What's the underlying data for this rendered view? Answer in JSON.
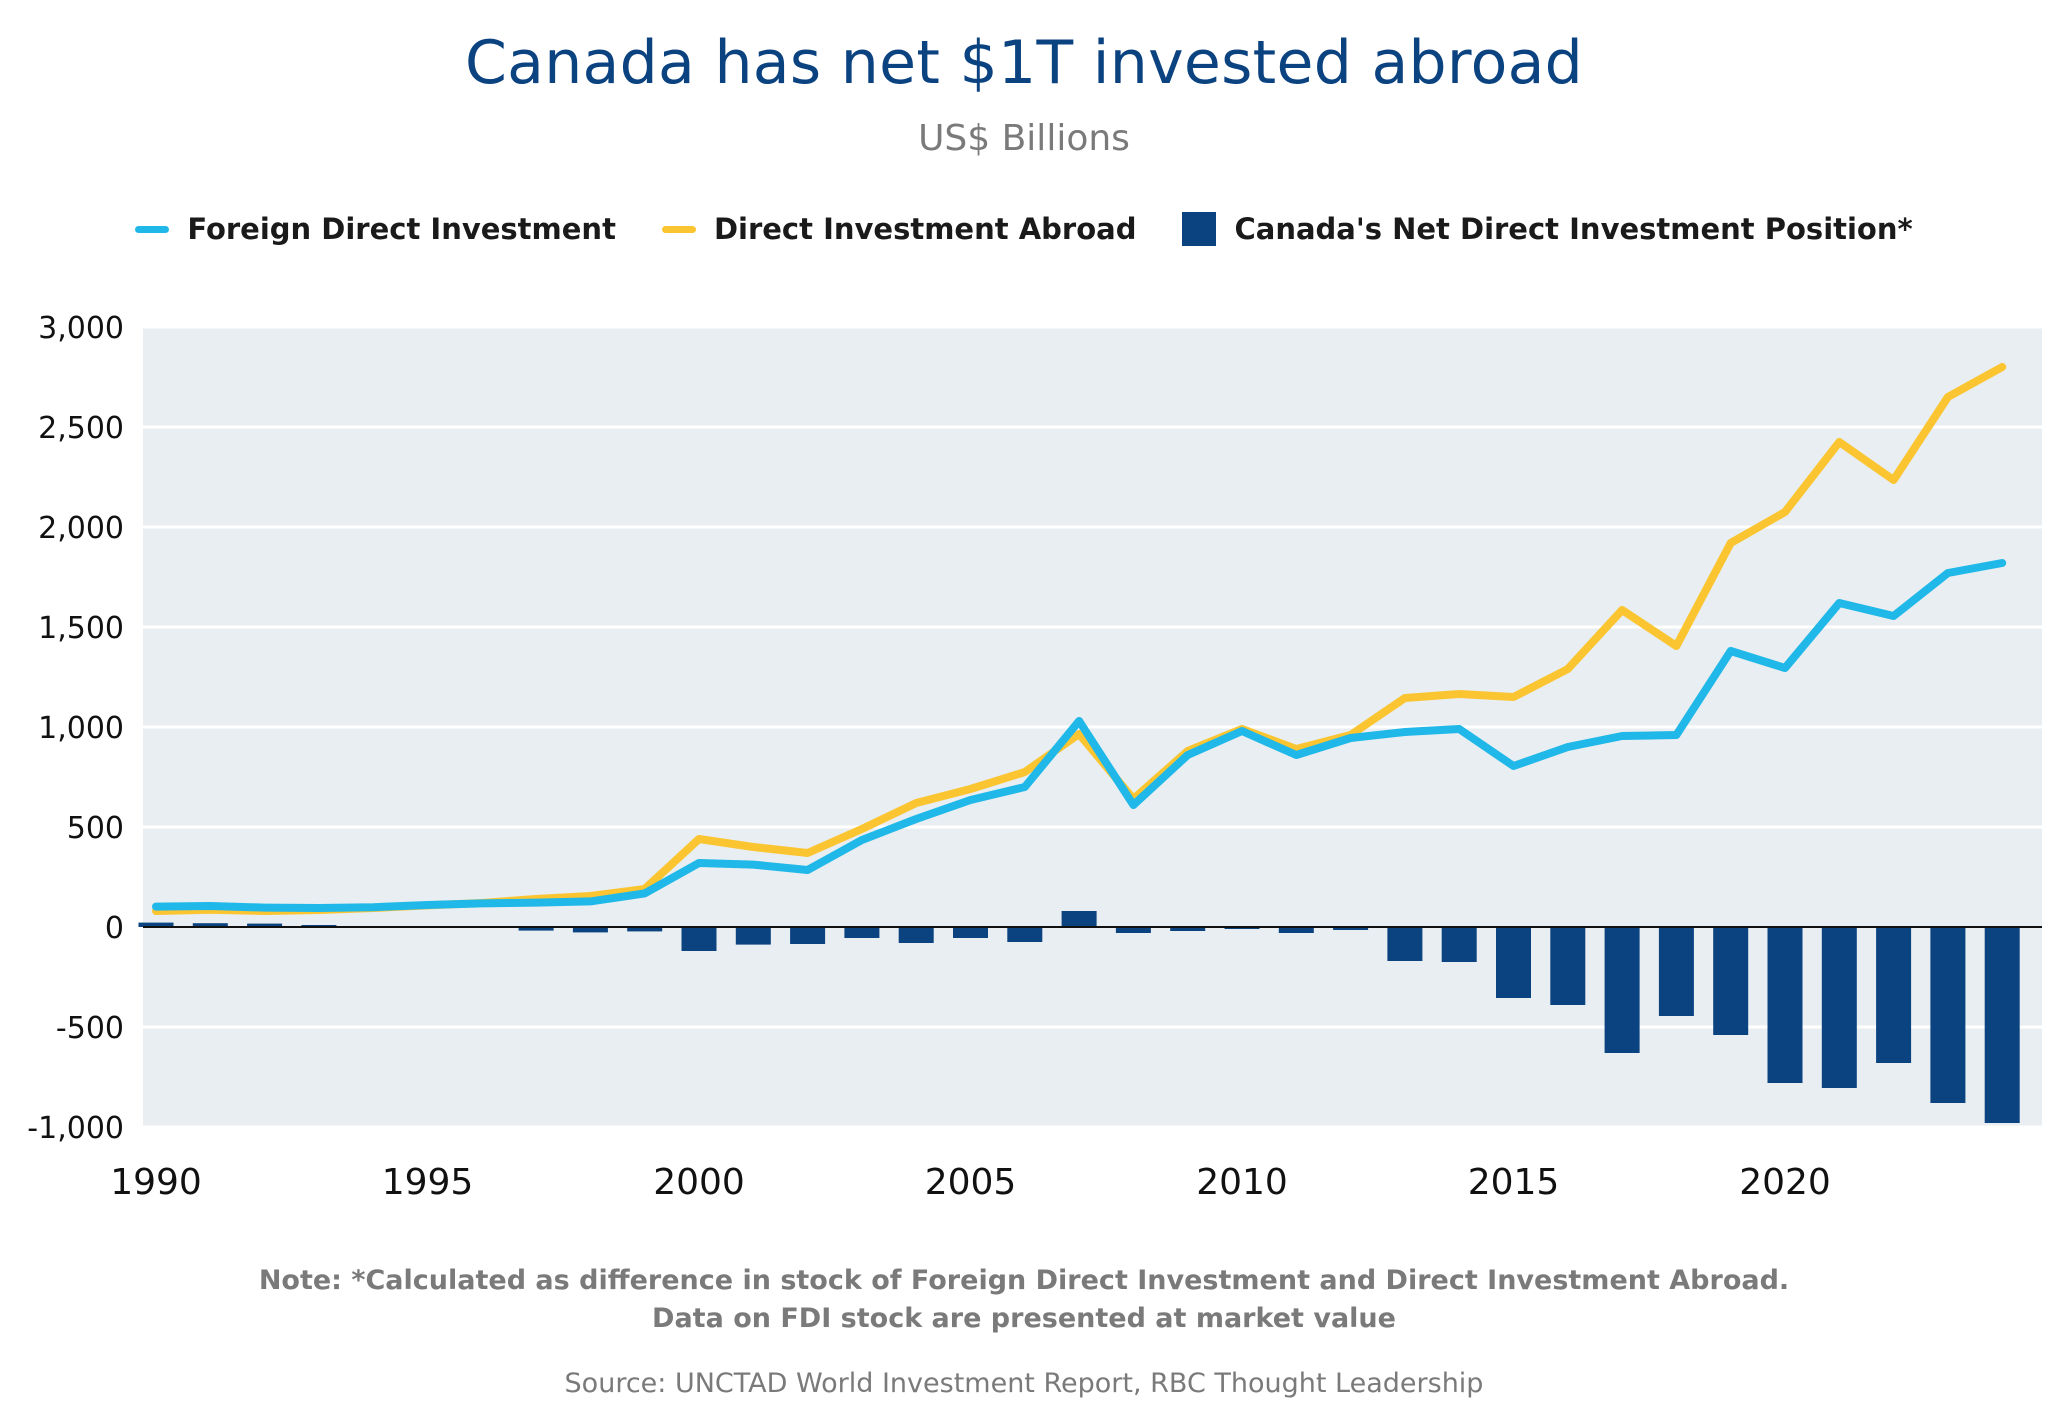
{
  "title": "Canada has net $1T invested abroad",
  "subtitle": "US$ Billions",
  "note_line1": "Note: *Calculated as difference in stock of Foreign Direct Investment and Direct Investment Abroad.",
  "note_line2": "Data on FDI stock are presented at market value",
  "source": "Source: UNCTAD World Investment Report, RBC Thought Leadership",
  "colors": {
    "fdi": "#1fb8e8",
    "dia": "#fbc531",
    "net": "#0b4280",
    "plot_bg": "#e8eef1"
  },
  "chart_data": {
    "type": "line",
    "xlabel": "",
    "ylabel": "",
    "ylim": [
      -1000,
      3000
    ],
    "xlim": [
      1990,
      2024
    ],
    "yticks": [
      -1000,
      -500,
      0,
      500,
      1000,
      1500,
      2000,
      2500,
      3000
    ],
    "ytick_labels": [
      "-1,000",
      "-500",
      "0",
      "500",
      "1,000",
      "1,500",
      "2,000",
      "2,500",
      "3,000"
    ],
    "xticks": [
      1990,
      1995,
      2000,
      2005,
      2010,
      2015,
      2020
    ],
    "xtick_labels": [
      "1990",
      "1995",
      "2000",
      "2005",
      "2010",
      "2015",
      "2020"
    ],
    "grid": true,
    "legend_position": "top",
    "x": [
      1990,
      1991,
      1992,
      1993,
      1994,
      1995,
      1996,
      1997,
      1998,
      1999,
      2000,
      2001,
      2002,
      2003,
      2004,
      2005,
      2006,
      2007,
      2008,
      2009,
      2010,
      2011,
      2012,
      2013,
      2014,
      2015,
      2016,
      2017,
      2018,
      2019,
      2020,
      2021,
      2022,
      2023,
      2024
    ],
    "series": [
      {
        "name": "Foreign Direct Investment",
        "type": "line",
        "values": [
          102,
          105,
          97,
          95,
          99,
          110,
          118,
          122,
          128,
          168,
          320,
          312,
          285,
          435,
          540,
          635,
          700,
          1030,
          610,
          860,
          980,
          860,
          945,
          975,
          990,
          805,
          900,
          955,
          960,
          1380,
          1295,
          1620,
          1555,
          1770,
          1820
        ]
      },
      {
        "name": "Direct Investment Abroad",
        "type": "line",
        "values": [
          80,
          86,
          80,
          85,
          95,
          108,
          120,
          140,
          155,
          190,
          440,
          400,
          370,
          490,
          620,
          690,
          775,
          965,
          640,
          880,
          990,
          890,
          960,
          1145,
          1165,
          1150,
          1290,
          1585,
          1405,
          1920,
          2075,
          2425,
          2235,
          2650,
          2800
        ]
      },
      {
        "name": "Canada's Net Direct Investment Position*",
        "type": "bar",
        "values": [
          22,
          19,
          17,
          10,
          4,
          2,
          -2,
          -18,
          -27,
          -22,
          -120,
          -88,
          -85,
          -55,
          -80,
          -55,
          -75,
          80,
          -30,
          -20,
          -10,
          -30,
          -15,
          -170,
          -175,
          -355,
          -390,
          -630,
          -445,
          -540,
          -780,
          -805,
          -680,
          -880,
          -980
        ]
      }
    ]
  }
}
